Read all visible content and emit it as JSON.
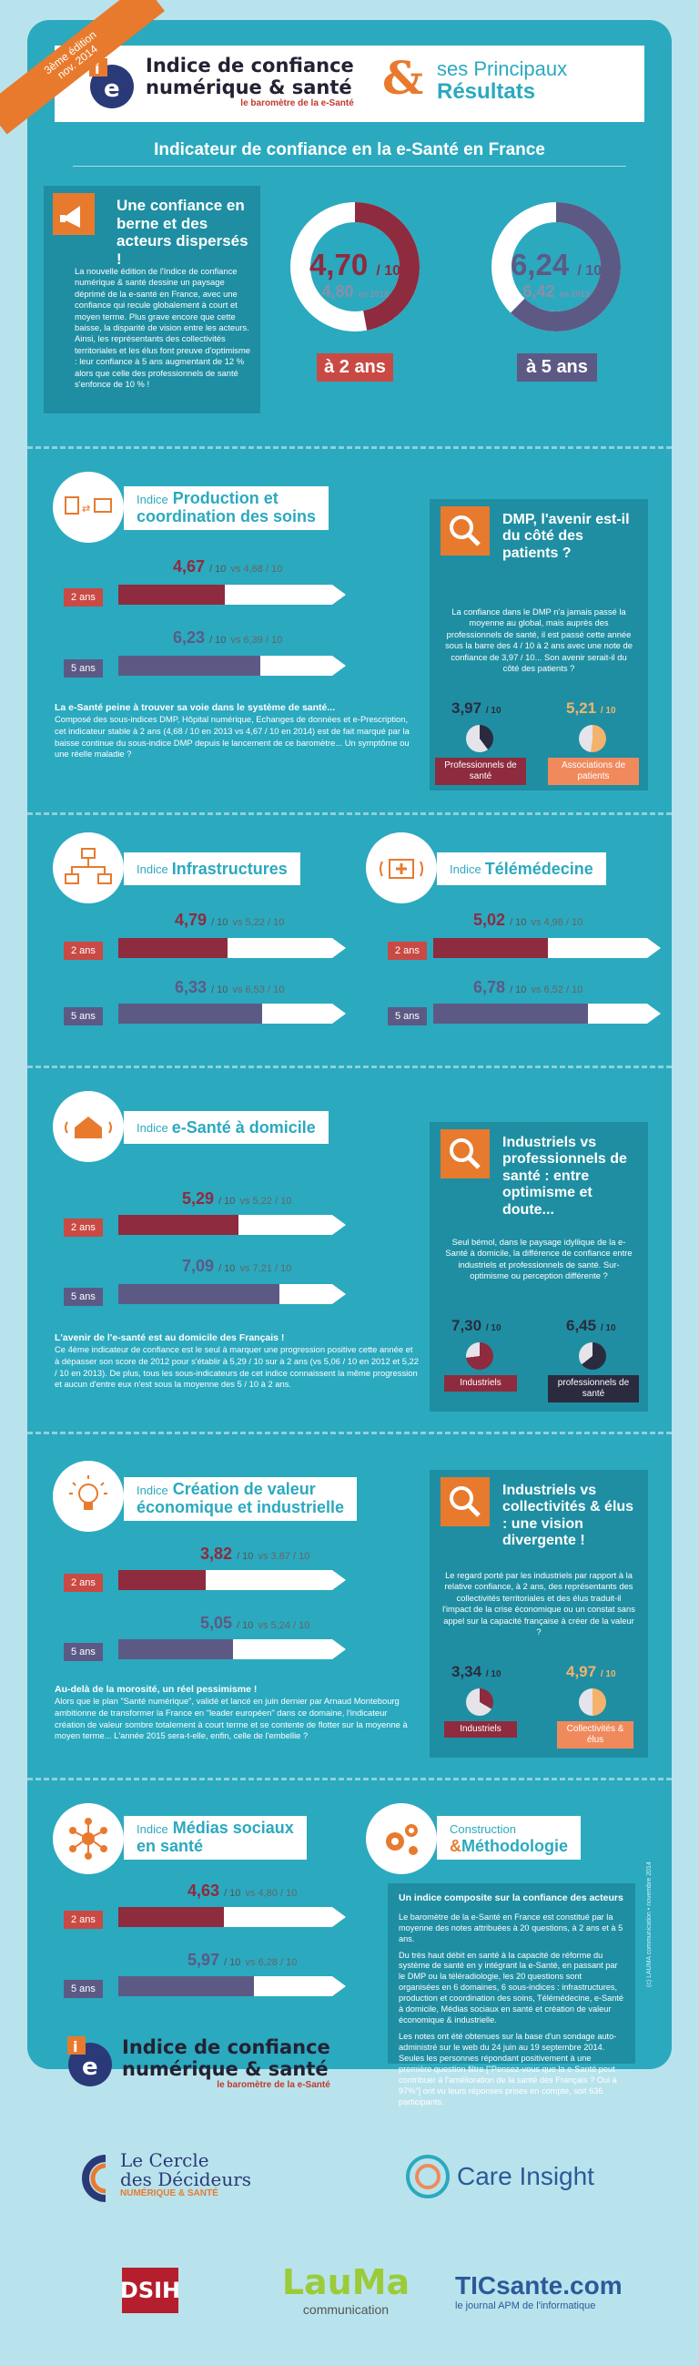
{
  "header": {
    "ribbon": "3ème édition\nnov. 2014",
    "title_line1": "Indice de confiance",
    "title_line2": "numérique & santé",
    "subtitle": "le baromètre de la e-Santé",
    "amp": "&",
    "right_line1": "ses Principaux",
    "right_line2": "Résultats"
  },
  "indicator_title": "Indicateur de confiance en la e-Santé en France",
  "confidence": {
    "heading": "Une confiance en berne et des acteurs dispersés !",
    "text": "La nouvelle édition de l'Indice de confiance numérique & santé dessine un paysage déprimé de la e-santé en France, avec une confiance qui recule globalement à court et moyen terme. Plus grave encore que cette baisse, la disparité de vision entre les acteurs. Ainsi, les représentants des collectivités territoriales et les élus font preuve d'optimisme : leur confiance à 5 ans augmentant de 12 % alors que celle des professionnels de santé s'enfonce de 10 % !",
    "ring2": {
      "value": "4,70",
      "unit": "/ 10",
      "prev": "4,80",
      "prev_suffix": "en 2013",
      "score": 4.7,
      "label": "à 2 ans"
    },
    "ring5": {
      "value": "6,24",
      "unit": "/ 10",
      "prev": "6,42",
      "prev_suffix": "en 2013",
      "score": 6.24,
      "label": "à 5 ans"
    }
  },
  "colors": {
    "red": "#8e2b3e",
    "purple": "#5c5a85",
    "orange": "#e87a2e",
    "teal": "#2ba9bf"
  },
  "production": {
    "prefix": "Indice",
    "title_line1": "Production et",
    "title_line2": "coordination des soins",
    "s2": {
      "label": "2 ans",
      "value": "4,67",
      "unit": "/ 10",
      "vs": "vs 4,68 / 10",
      "score": 4.67
    },
    "s5": {
      "label": "5 ans",
      "value": "6,23",
      "unit": "/ 10",
      "vs": "vs 6,39 / 10",
      "score": 6.23
    },
    "text_bold": "La e-Santé peine à trouver sa voie dans le système de santé...",
    "text": "Composé des sous-indices DMP, Hôpital numérique, Echanges de données et e-Prescription, cet indicateur stable à 2 ans (4,68 / 10 en 2013 vs 4,67 / 10 en 2014) est de fait marqué par la baisse continue du sous-indice DMP depuis le lancement de ce baromètre... Un symptôme ou une réelle maladie ?"
  },
  "dmp": {
    "heading": "DMP, l'avenir est-il du côté des patients ?",
    "text": "La confiance dans le DMP n'a jamais passé la moyenne au global, mais auprès des professionnels de santé, il est passé cette année sous la barre des 4 / 10 à 2 ans avec une note de confiance de 3,97 / 10... Son avenir serait-il du côté des patients ?",
    "a": {
      "value": "3,97",
      "unit": "/ 10",
      "label": "Professionnels de santé",
      "score": 3.97
    },
    "b": {
      "value": "5,21",
      "unit": "/ 10",
      "label": "Associations de patients",
      "score": 5.21
    }
  },
  "infra": {
    "prefix": "Indice",
    "title": "Infrastructures",
    "s2": {
      "label": "2 ans",
      "value": "4,79",
      "unit": "/ 10",
      "vs": "vs 5,22 / 10",
      "score": 4.79
    },
    "s5": {
      "label": "5 ans",
      "value": "6,33",
      "unit": "/ 10",
      "vs": "vs 6,53 / 10",
      "score": 6.33
    }
  },
  "tele": {
    "prefix": "Indice",
    "title": "Télémédecine",
    "s2": {
      "label": "2 ans",
      "value": "5,02",
      "unit": "/ 10",
      "vs": "vs 4,98 / 10",
      "score": 5.02
    },
    "s5": {
      "label": "5 ans",
      "value": "6,78",
      "unit": "/ 10",
      "vs": "vs 6,52 / 10",
      "score": 6.78
    }
  },
  "domicile": {
    "prefix": "Indice",
    "title": "e-Santé à domicile",
    "s2": {
      "label": "2 ans",
      "value": "5,29",
      "unit": "/ 10",
      "vs": "vs 5,22 / 10",
      "score": 5.29
    },
    "s5": {
      "label": "5 ans",
      "value": "7,09",
      "unit": "/ 10",
      "vs": "vs 7,21 / 10",
      "score": 7.09
    },
    "text_bold": "L'avenir de l'e-santé est au domicile des Français !",
    "text": "Ce 4ème indicateur de confiance est le seul à marquer une progression positive cette année et à dépasser son score de 2012 pour s'établir à 5,29 / 10 sur à 2 ans (vs 5,06 / 10 en 2012 et 5,22 / 10 en 2013). De plus, tous les sous-indicateurs de cet indice connaissent la même progression et aucun d'entre eux n'est sous la moyenne des 5 / 10 à 2 ans."
  },
  "indpro": {
    "heading": "Industriels vs professionnels de santé : entre optimisme et doute...",
    "text": "Seul bémol, dans le paysage idyllique de la e-Santé à domicile, la différence de confiance entre industriels et professionnels de santé. Sur-optimisme ou perception différente ?",
    "a": {
      "value": "7,30",
      "unit": "/ 10",
      "label": "Industriels",
      "score": 7.3
    },
    "b": {
      "value": "6,45",
      "unit": "/ 10",
      "label": "professionnels de santé",
      "score": 6.45
    }
  },
  "valeur": {
    "prefix": "Indice",
    "title_line1": "Création de valeur",
    "title_line2": "économique et industrielle",
    "s2": {
      "label": "2 ans",
      "value": "3,82",
      "unit": "/ 10",
      "vs": "vs 3,87 / 10",
      "score": 3.82
    },
    "s5": {
      "label": "5 ans",
      "value": "5,05",
      "unit": "/ 10",
      "vs": "vs 5,24 / 10",
      "score": 5.05
    },
    "text_bold": "Au-delà de la morosité, un réel pessimisme !",
    "text": "Alors que le plan \"Santé numérique\", validé et lancé en juin dernier par Arnaud Montebourg ambitionne de transformer la France en \"leader européen\" dans ce domaine, l'indicateur création de valeur sombre totalement à court terme et se contente de flotter sur la moyenne à moyen terme... L'année 2015 sera-t-elle, enfin, celle de l'embellie ?"
  },
  "indcoll": {
    "heading": "Industriels vs collectivités & élus : une vision divergente !",
    "text": "Le regard porté par les industriels par rapport à la relative confiance, à 2 ans, des représentants des collectivités territoriales et des élus traduit-il l'impact de la crise économique ou un constat sans appel sur la capacité française à créer de la valeur ?",
    "a": {
      "value": "3,34",
      "unit": "/ 10",
      "label": "Industriels",
      "score": 3.34
    },
    "b": {
      "value": "4,97",
      "unit": "/ 10",
      "label": "Collectivités & élus",
      "score": 4.97
    }
  },
  "medias": {
    "prefix": "Indice",
    "title_line1": "Médias sociaux",
    "title_line2": "en santé",
    "s2": {
      "label": "2 ans",
      "value": "4,63",
      "unit": "/ 10",
      "vs": "vs 4,80 / 10",
      "score": 4.63
    },
    "s5": {
      "label": "5 ans",
      "value": "5,97",
      "unit": "/ 10",
      "vs": "vs 6,28 / 10",
      "score": 5.97
    }
  },
  "methodo": {
    "line1": "Construction",
    "line2": "Méthodologie",
    "amp": "&",
    "heading": "Un indice composite sur la confiance des acteurs",
    "p1": "Le baromètre de la e-Santé en France est constitué par la moyenne des notes attribuées à 20 questions, à 2 ans et à 5 ans.",
    "p2": "Du très haut débit en santé à la capacité de réforme du système de santé en y intégrant la e-Santé, en passant par le DMP ou la télé­radiologie, les 20 questions sont organisées en 6 domaines, 6 sous-indices : infrastructures, production et coordination des soins, Télémédecine, e-Santé à domicile, Médias sociaux en santé et création de valeur économique & industrielle.",
    "p3": "Les notes ont été obtenues sur la base d'un sondage auto-administré sur le web du 24 juin au 19 septembre 2014. Seules les personnes répondant positivement à une première question filtre [\"Pensez-vous que la e-Santé peut contribuer à l'amélioration de la santé des Français ? Oui à 97%\"] ont vu leurs réponses prises en compte, soit 636 participants.",
    "credit": "(c) LAUMA communication • novembre 2014"
  },
  "footer_logo": {
    "title_line1": "Indice de confiance",
    "title_line2": "numérique & santé",
    "subtitle": "le baromètre de la e-Santé"
  },
  "partners": {
    "cercle_line1": "Le Cercle",
    "cercle_line2": "des Décideurs",
    "cercle_line3": "NUMÉRIQUE & SANTÉ",
    "care": "Care Insight",
    "dsih": "DSIH",
    "lauma": "LauMa",
    "lauma_sub": "communication",
    "tic": "TICsante.com",
    "tic_sub": "le journal APM de l'informatique"
  }
}
